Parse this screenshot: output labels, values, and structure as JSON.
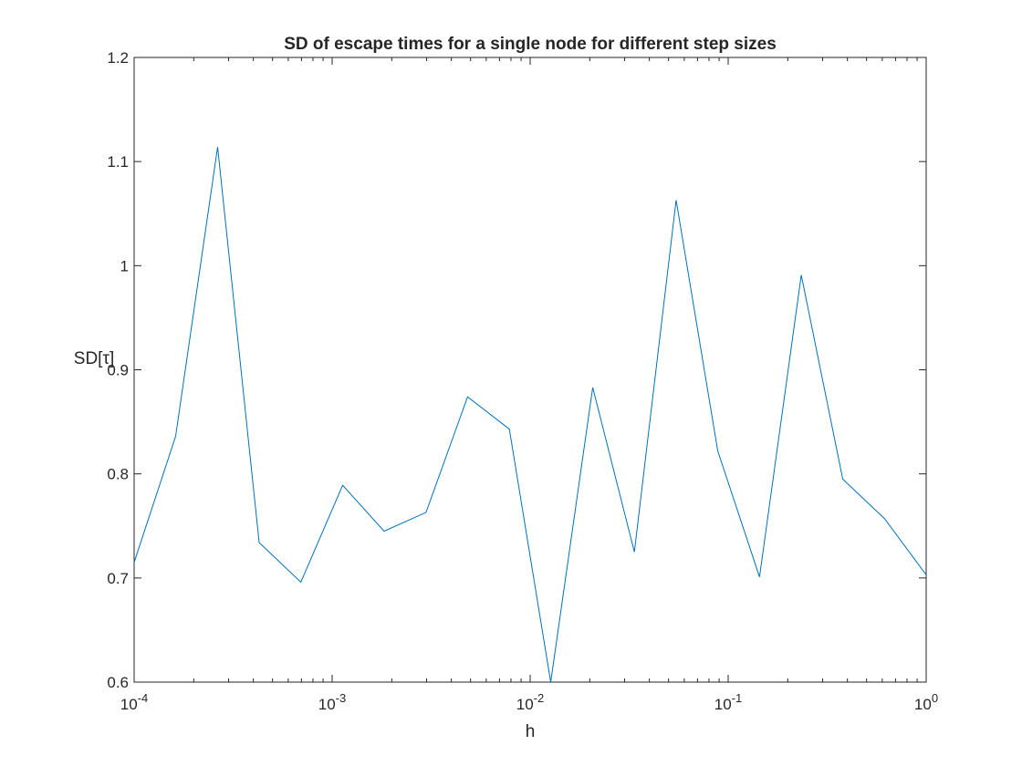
{
  "chart_data": {
    "type": "line",
    "title": "SD of escape times for a single node for different step sizes",
    "xlabel": "h",
    "ylabel": "SD[τ]",
    "xscale": "log",
    "xlim": [
      0.0001,
      1
    ],
    "ylim": [
      0.6,
      1.2
    ],
    "grid": false,
    "box": true,
    "series_color": "#0072BD",
    "x_ticks": [
      {
        "value": 0.0001,
        "base": "10",
        "exp": "-4"
      },
      {
        "value": 0.001,
        "base": "10",
        "exp": "-3"
      },
      {
        "value": 0.01,
        "base": "10",
        "exp": "-2"
      },
      {
        "value": 0.1,
        "base": "10",
        "exp": "-1"
      },
      {
        "value": 1,
        "base": "10",
        "exp": "0"
      }
    ],
    "y_ticks": [
      {
        "value": 0.6,
        "label": "0.6"
      },
      {
        "value": 0.7,
        "label": "0.7"
      },
      {
        "value": 0.8,
        "label": "0.8"
      },
      {
        "value": 0.9,
        "label": "0.9"
      },
      {
        "value": 1.0,
        "label": "1"
      },
      {
        "value": 1.1,
        "label": "1.1"
      },
      {
        "value": 1.2,
        "label": "1.2"
      }
    ],
    "series": [
      {
        "x": [
          0.0001,
          0.000162,
          0.000264,
          0.000428,
          0.000695,
          0.00113,
          0.00183,
          0.00298,
          0.00483,
          0.00785,
          0.0127,
          0.0207,
          0.0336,
          0.0546,
          0.0886,
          0.144,
          0.234,
          0.379,
          0.616,
          1.0
        ],
        "values": [
          0.715,
          0.836,
          1.114,
          0.734,
          0.696,
          0.789,
          0.745,
          0.763,
          0.874,
          0.843,
          0.6,
          0.883,
          0.725,
          1.063,
          0.822,
          0.701,
          0.991,
          0.795,
          0.757,
          0.703
        ]
      }
    ]
  }
}
